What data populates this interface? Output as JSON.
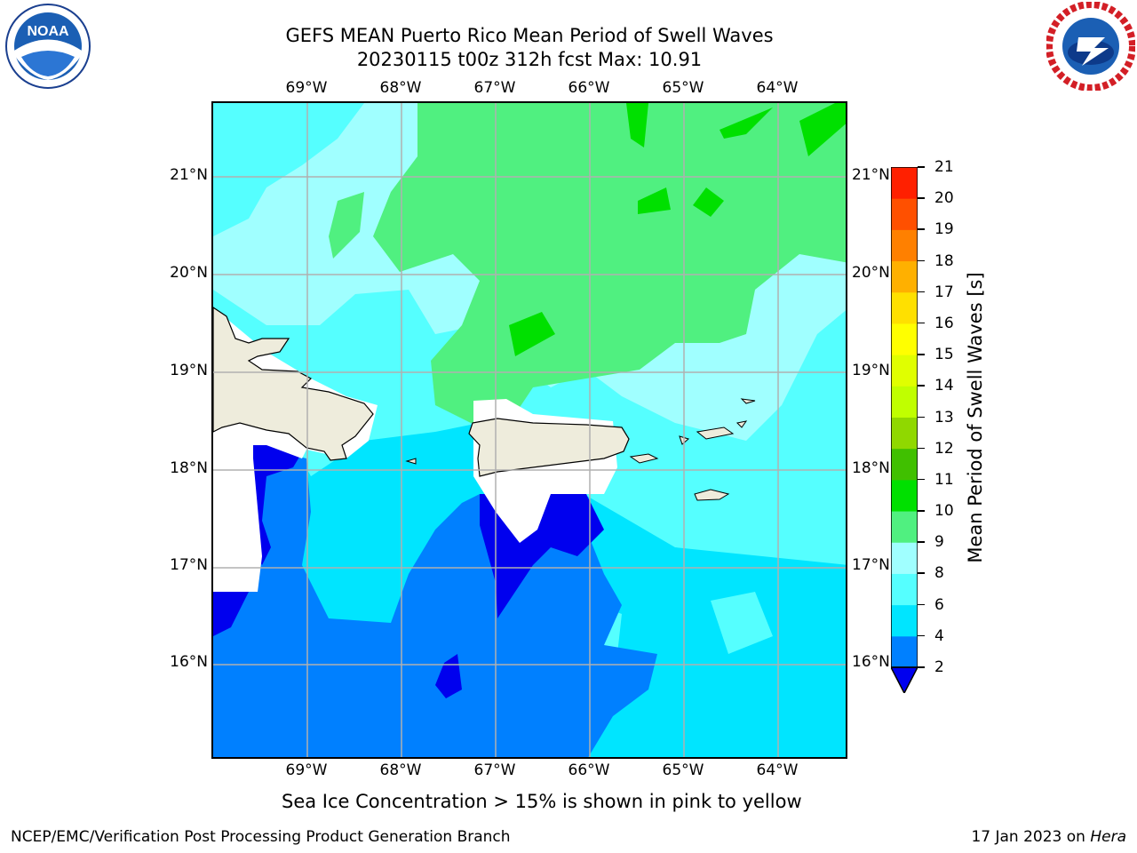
{
  "title": {
    "line1": "GEFS MEAN Puerto Rico Mean Period of Swell Waves",
    "line2": "20230115 t00z 312h fcst   Max: 10.91"
  },
  "axes": {
    "x_ticks": [
      "69°W",
      "68°W",
      "67°W",
      "66°W",
      "65°W",
      "64°W"
    ],
    "y_ticks": [
      "21°N",
      "20°N",
      "19°N",
      "18°N",
      "17°N",
      "16°N"
    ],
    "lon_range": [
      -70.0,
      -63.25
    ],
    "lat_range": [
      15.0,
      21.75
    ]
  },
  "colorbar": {
    "label": "Mean Period of Swell Waves [s]",
    "ticks": [
      "2",
      "4",
      "6",
      "8",
      "9",
      "10",
      "11",
      "12",
      "13",
      "14",
      "15",
      "16",
      "17",
      "18",
      "19",
      "20",
      "21"
    ],
    "colors": [
      "#0000ee",
      "#0080ff",
      "#00e5ff",
      "#55ffff",
      "#a0ffff",
      "#50f080",
      "#00e000",
      "#40c000",
      "#90d800",
      "#c0ff00",
      "#e0ff00",
      "#ffff00",
      "#ffe000",
      "#ffb000",
      "#ff8000",
      "#ff5000",
      "#ff2000",
      "#ff0000"
    ],
    "extend_arrow_color": "#0000ee"
  },
  "map": {
    "land_color": "#eeecdc",
    "grid_color": "#b0b0b0",
    "masked_color": "#ffffff"
  },
  "note": "Sea Ice Concentration > 15% is shown in pink to yellow",
  "footer": {
    "left": "NCEP/EMC/Verification Post Processing Product Generation Branch",
    "right_date": "17 Jan 2023 on ",
    "right_host": "Hera"
  },
  "logos": {
    "left_icon": "noaa-logo",
    "right_icon": "nws-logo"
  }
}
